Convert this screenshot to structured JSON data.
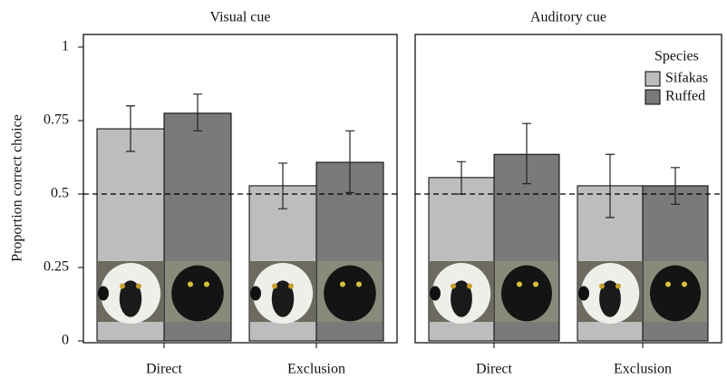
{
  "chart_data": [
    {
      "type": "bar",
      "title": "Visual cue",
      "y_label": "Proportion correct choice",
      "categories": [
        "Direct",
        "Exclusion"
      ],
      "series": [
        {
          "name": "Sifakas",
          "color": "#bdbdbd",
          "values": [
            0.722,
            0.528
          ],
          "lower": [
            0.645,
            0.45
          ],
          "upper": [
            0.8,
            0.605
          ]
        },
        {
          "name": "Ruffed",
          "color": "#7a7a7a",
          "values": [
            0.775,
            0.608
          ],
          "lower": [
            0.715,
            0.505
          ],
          "upper": [
            0.84,
            0.715
          ]
        }
      ],
      "ylim": [
        0,
        1.04
      ],
      "yticks": [
        0,
        0.25,
        0.5,
        0.75,
        1
      ],
      "reference_line": 0.5
    },
    {
      "type": "bar",
      "title": "Auditory cue",
      "legend_title": "Species",
      "legend": "upper-right",
      "categories": [
        "Direct",
        "Exclusion"
      ],
      "series": [
        {
          "name": "Sifakas",
          "color": "#bdbdbd",
          "values": [
            0.556,
            0.528
          ],
          "lower": [
            0.5,
            0.42
          ],
          "upper": [
            0.61,
            0.635
          ]
        },
        {
          "name": "Ruffed",
          "color": "#7a7a7a",
          "values": [
            0.635,
            0.528
          ],
          "lower": [
            0.535,
            0.465
          ],
          "upper": [
            0.74,
            0.59
          ]
        }
      ],
      "ylim": [
        0,
        1.04
      ],
      "reference_line": 0.5
    }
  ]
}
